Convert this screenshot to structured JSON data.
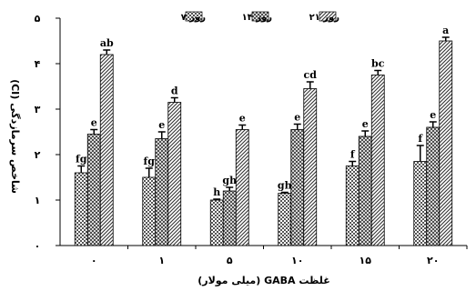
{
  "chart_data": {
    "type": "bar",
    "title": "",
    "xlabel": "غلظت GABA (میلی مولار)",
    "ylabel": "شاخص سرمازدگی (CI)",
    "ylim": [
      0,
      5
    ],
    "yticks": [
      0,
      1,
      2,
      3,
      4,
      5
    ],
    "ytick_labels": [
      "۰",
      "۱",
      "۲",
      "۳",
      "۴",
      "۵"
    ],
    "categories": [
      "۰",
      "۱",
      "۵",
      "۱۰",
      "۱۵",
      "۲۰"
    ],
    "legend_position": "top-right",
    "grid": false,
    "series": [
      {
        "name": "روز ۷",
        "pattern": "checker",
        "values": [
          1.6,
          1.5,
          1.0,
          1.15,
          1.75,
          1.85
        ],
        "errors": [
          0.15,
          0.2,
          0.02,
          0.02,
          0.1,
          0.35
        ],
        "labels": [
          "fg",
          "fg",
          "h",
          "gh",
          "f",
          "f"
        ]
      },
      {
        "name": "روز ۱۴",
        "pattern": "crosshatch",
        "values": [
          2.45,
          2.35,
          1.2,
          2.55,
          2.4,
          2.6
        ],
        "errors": [
          0.1,
          0.15,
          0.08,
          0.12,
          0.12,
          0.12
        ],
        "labels": [
          "e",
          "e",
          "gh",
          "e",
          "e",
          "e"
        ]
      },
      {
        "name": "روز ۲۱",
        "pattern": "diagonal",
        "values": [
          4.2,
          3.15,
          2.55,
          3.45,
          3.75,
          4.5
        ],
        "errors": [
          0.1,
          0.1,
          0.1,
          0.15,
          0.1,
          0.08
        ],
        "labels": [
          "ab",
          "d",
          "e",
          "cd",
          "bc",
          "a"
        ]
      }
    ]
  }
}
